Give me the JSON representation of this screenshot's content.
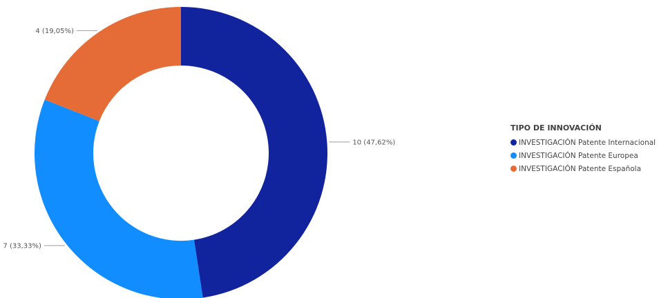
{
  "chart_data": {
    "type": "pie",
    "donut": true,
    "legend_title": "TIPO DE INNOVACIÓN",
    "legend_position": "right",
    "categories": [
      "INVESTIGACIÓN Patente Internacional",
      "INVESTIGACIÓN Patente Europea",
      "INVESTIGACIÓN Patente Española"
    ],
    "values": [
      10,
      7,
      4
    ],
    "labels": [
      "10 (47,62%)",
      "7 (33,33%)",
      "4 (19,05%)"
    ],
    "colors": [
      "#12239E",
      "#118DFF",
      "#E66C37"
    ]
  }
}
